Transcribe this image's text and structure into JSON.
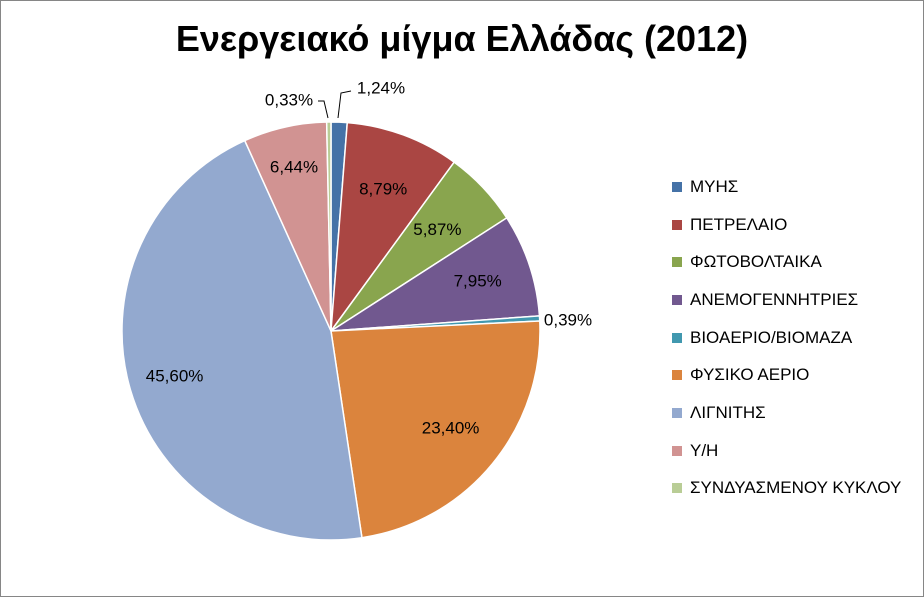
{
  "chart_data": {
    "type": "pie",
    "title": "Ενεργειακό μίγμα Ελλάδας (2012)",
    "categories": [
      "ΜΥΗΣ",
      "ΠΕΤΡΕΛΑΙΟ",
      "ΦΩΤΟΒΟΛΤΑΙΚΑ",
      "ΑΝΕΜΟΓΕΝΝΗΤΡΙΕΣ",
      "ΒΙΟΑΕΡΙΟ/ΒΙΟΜΑΖΑ",
      "ΦΥΣΙΚΟ ΑΕΡΙΟ",
      "ΛΙΓΝΙΤΗΣ",
      "Υ/Η",
      "ΣΥΝΔΥΑΣΜΕΝΟΥ ΚΥΚΛΟΥ"
    ],
    "values": [
      1.24,
      8.79,
      5.87,
      7.95,
      0.39,
      23.4,
      45.6,
      6.44,
      0.33
    ],
    "labels": [
      "1,24%",
      "8,79%",
      "5,87%",
      "7,95%",
      "0,39%",
      "23,40%",
      "45,60%",
      "6,44%",
      "0,33%"
    ],
    "colors": [
      "#4572A7",
      "#AA4643",
      "#89A54E",
      "#71588F",
      "#4198AF",
      "#DB843D",
      "#93A9CF",
      "#D19392",
      "#B9CD96"
    ],
    "legend_position": "right"
  }
}
